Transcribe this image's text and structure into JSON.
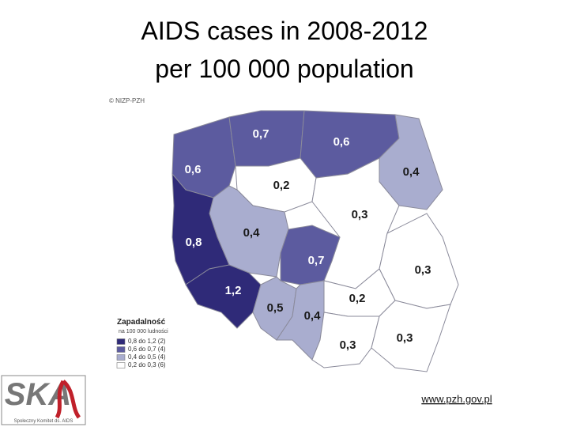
{
  "title": [
    "AIDS cases in 2008-2012",
    "per 100 000 population"
  ],
  "map": {
    "copyright": "© NIZP-PZH",
    "regions": [
      {
        "label": "0,6",
        "color": "#5c5b9f"
      },
      {
        "label": "0,7",
        "color": "#5c5b9f"
      },
      {
        "label": "0,6",
        "color": "#5c5b9f"
      },
      {
        "label": "0,4",
        "color": "#a9adcf"
      },
      {
        "label": "0,2",
        "color": "#ffffff"
      },
      {
        "label": "0,3",
        "color": "#ffffff"
      },
      {
        "label": "0,4",
        "color": "#a9adcf"
      },
      {
        "label": "0,8",
        "color": "#2f2a78"
      },
      {
        "label": "0,7",
        "color": "#5c5b9f"
      },
      {
        "label": "0,3",
        "color": "#ffffff"
      },
      {
        "label": "1,2",
        "color": "#2f2a78"
      },
      {
        "label": "0,5",
        "color": "#a9adcf"
      },
      {
        "label": "0,4",
        "color": "#a9adcf"
      },
      {
        "label": "0,2",
        "color": "#ffffff"
      },
      {
        "label": "0,3",
        "color": "#ffffff"
      },
      {
        "label": "0,3",
        "color": "#ffffff"
      }
    ]
  },
  "legend": {
    "title": "Zapadalność",
    "subtitle": "na 100 000 ludności",
    "items": [
      {
        "label": "0,8 do 1,2 (2)",
        "color": "#2f2a78"
      },
      {
        "label": "0,6 do 0,7 (4)",
        "color": "#5c5b9f"
      },
      {
        "label": "0,4 do 0,5 (4)",
        "color": "#a9adcf"
      },
      {
        "label": "0,2 do 0,3 (6)",
        "color": "#ffffff"
      }
    ]
  },
  "logo": {
    "text": "SKA",
    "caption": "Społeczny Komitet ds. AIDS"
  },
  "source": "www.pzh.gov.pl"
}
